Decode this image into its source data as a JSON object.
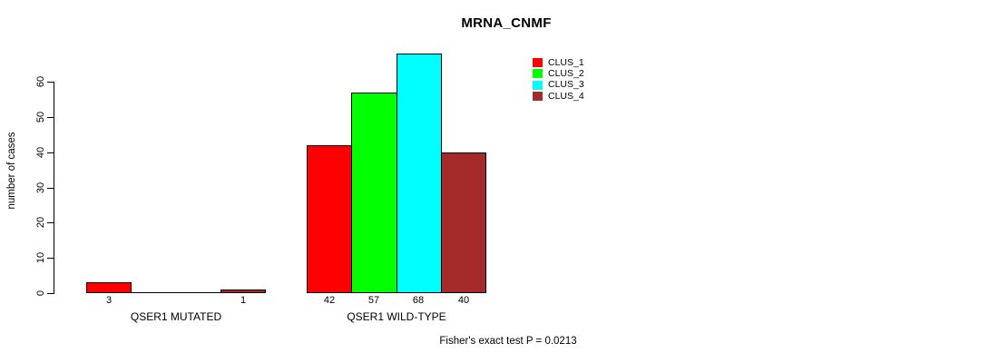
{
  "title": "MRNA_CNMF",
  "footer": "Fisher's exact test P = 0.0213",
  "legend": [
    {
      "label": "CLUS_1",
      "color": "#FF0000"
    },
    {
      "label": "CLUS_2",
      "color": "#00FF00"
    },
    {
      "label": "CLUS_3",
      "color": "#00FFFF"
    },
    {
      "label": "CLUS_4",
      "color": "#A52A2A"
    }
  ],
  "chart_data": {
    "type": "bar",
    "title": "MRNA_CNMF",
    "xlabel": "",
    "ylabel": "number of cases",
    "yticks": [
      0,
      10,
      20,
      30,
      40,
      50,
      60
    ],
    "ylim": [
      0,
      68
    ],
    "grid": false,
    "legend_position": "top-right",
    "series": [
      "CLUS_1",
      "CLUS_2",
      "CLUS_3",
      "CLUS_4"
    ],
    "series_colors": [
      "#FF0000",
      "#00FF00",
      "#00FFFF",
      "#A52A2A"
    ],
    "categories": [
      "QSER1 MUTATED",
      "QSER1 WILD-TYPE"
    ],
    "groups": [
      {
        "label": "QSER1 MUTATED",
        "values": [
          3,
          0,
          0,
          1
        ],
        "value_labels": [
          "3",
          "",
          "",
          "1"
        ]
      },
      {
        "label": "QSER1 WILD-TYPE",
        "values": [
          42,
          57,
          68,
          40
        ],
        "value_labels": [
          "42",
          "57",
          "68",
          "40"
        ]
      }
    ],
    "annotation": "Fisher's exact test P = 0.0213"
  }
}
